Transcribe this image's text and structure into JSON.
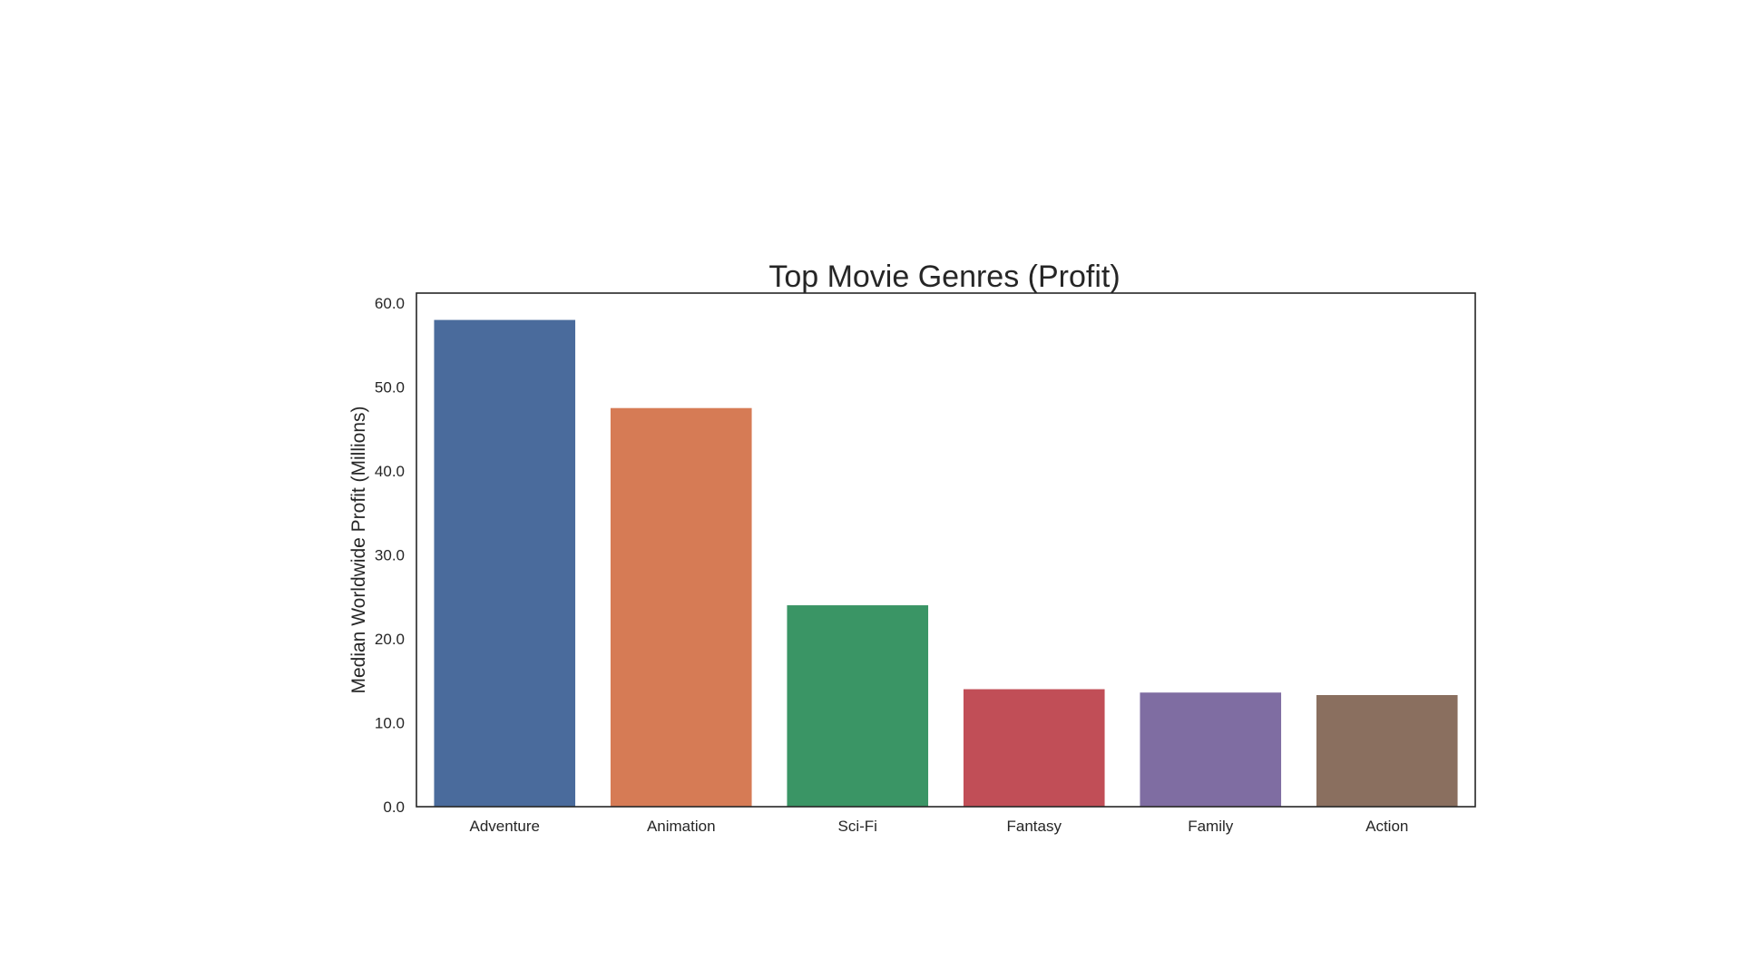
{
  "chart_data": {
    "type": "bar",
    "title": "Top Movie Genres (Profit)",
    "xlabel": "",
    "ylabel": "Median Worldwide Profit (Millions)",
    "categories": [
      "Adventure",
      "Animation",
      "Sci-Fi",
      "Fantasy",
      "Family",
      "Action"
    ],
    "values": [
      58.0,
      47.5,
      24.0,
      14.0,
      13.6,
      13.3
    ],
    "ylim": [
      0,
      61.2
    ],
    "yticks": [
      0,
      10,
      20,
      30,
      40,
      50,
      60
    ],
    "ytick_labels": [
      "0.0",
      "10.0",
      "20.0",
      "30.0",
      "40.0",
      "50.0",
      "60.0"
    ],
    "colors": [
      "#4a6b9c",
      "#d67b55",
      "#3a9565",
      "#c14e57",
      "#7f6da2",
      "#8a6f5f"
    ],
    "grid": false,
    "legend": "none"
  }
}
